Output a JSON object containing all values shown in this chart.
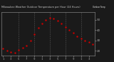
{
  "title": "Milwaukee Weather Outdoor Temperature per Hour (24 Hours)",
  "hours": [
    1,
    2,
    3,
    4,
    5,
    6,
    7,
    8,
    9,
    10,
    11,
    12,
    13,
    14,
    15,
    16,
    17,
    18,
    19,
    20,
    21,
    22,
    23,
    24
  ],
  "temps": [
    22,
    20,
    19,
    18,
    21,
    23,
    25,
    30,
    36,
    42,
    46,
    50,
    52,
    51,
    49,
    46,
    43,
    40,
    37,
    34,
    32,
    30,
    28,
    26
  ],
  "dot_color": "#cc0000",
  "dot_color2": "#ff6666",
  "bg_color": "#1a1a1a",
  "plot_bg": "#1a1a1a",
  "title_color": "#cccccc",
  "grid_color": "#555555",
  "axis_color": "#999999",
  "tick_color": "#aaaaaa",
  "legend_fill": "#cc0000",
  "legend_text": "Outdoor Temp",
  "ylim": [
    15,
    57
  ],
  "ytick_vals": [
    20,
    30,
    40,
    50
  ],
  "ytick_labels": [
    "20",
    "30",
    "40",
    "50"
  ],
  "vgrid_positions": [
    5,
    9,
    13,
    17,
    21
  ],
  "xtick_positions": [
    1,
    3,
    5,
    7,
    9,
    11,
    13,
    15,
    17,
    19,
    21,
    23
  ],
  "xtick_labels": [
    "1",
    "3",
    "5",
    "7",
    "9",
    "1",
    "3",
    "5",
    "7",
    "9",
    "1",
    "3"
  ],
  "dot_size": 3,
  "xlim": [
    0.5,
    24.5
  ]
}
